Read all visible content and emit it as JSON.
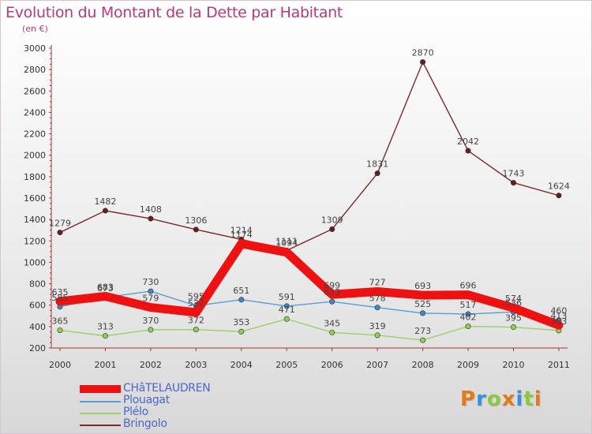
{
  "header": {
    "title": "Evolution du Montant de la Dette par Habitant",
    "subtitle": "(en €)"
  },
  "logo": {
    "text": "Proxiti",
    "colors": [
      "#e07b1a",
      "#3c8fd6",
      "#8dc63f",
      "#e07b1a",
      "#3c8fd6",
      "#8dc63f",
      "#e07b1a"
    ]
  },
  "chart_data": {
    "type": "line",
    "title": "Evolution du Montant de la Dette par Habitant",
    "subtitle": "(en €)",
    "xlabel": "",
    "ylabel": "",
    "categories": [
      "2000",
      "2001",
      "2002",
      "2003",
      "2004",
      "2005",
      "2006",
      "2007",
      "2008",
      "2009",
      "2010",
      "2011"
    ],
    "ylim": [
      200,
      3000
    ],
    "yticks": [
      200,
      400,
      600,
      800,
      1000,
      1200,
      1400,
      1600,
      1800,
      2000,
      2200,
      2400,
      2600,
      2800,
      3000
    ],
    "grid": false,
    "legend_position": "bottom-left",
    "series": [
      {
        "name": "CHâTELAUDREN",
        "color": "#ee1111",
        "width": "thick",
        "marker": false,
        "values": [
          635,
          683,
          579,
          532,
          1174,
          1094,
          699,
          727,
          693,
          696,
          574,
          413
        ]
      },
      {
        "name": "Plouagat",
        "color": "#5b9bd5",
        "width": "thin",
        "marker": true,
        "marker_color": "#3f86c9",
        "values": [
          585,
          673,
          730,
          595,
          651,
          591,
          633,
          578,
          525,
          517,
          536,
          460
        ]
      },
      {
        "name": "Plélo",
        "color": "#9ad06a",
        "width": "thin",
        "marker": true,
        "marker_color": "#8fd14f",
        "values": [
          365,
          313,
          370,
          372,
          353,
          471,
          345,
          319,
          273,
          402,
          395,
          363
        ]
      },
      {
        "name": "Bringolo",
        "color": "#7a2a2a",
        "width": "thin",
        "marker": true,
        "marker_color": "#6b1c1c",
        "values": [
          1279,
          1482,
          1408,
          1306,
          1214,
          1111,
          1309,
          1831,
          2870,
          2042,
          1743,
          1624
        ]
      }
    ],
    "data_labels": {
      "CHâTELAUDREN": [
        "635",
        "683",
        "579",
        "532",
        "1174",
        "1094",
        "699",
        "727",
        "693",
        "696",
        "574",
        "413"
      ],
      "Plouagat": [
        "585",
        "673",
        "730",
        "595",
        "651",
        "591",
        "633",
        "578",
        "525",
        "517",
        "536",
        "460"
      ],
      "Plélo": [
        "365",
        "313",
        "370",
        "372",
        "353",
        "471",
        "345",
        "319",
        "273",
        "402",
        "395",
        "363"
      ],
      "Bringolo": [
        "1279",
        "1482",
        "1408",
        "1306",
        "1214",
        "1111",
        "1309",
        "1831",
        "2870",
        "2042",
        "1743",
        "1624"
      ]
    }
  }
}
